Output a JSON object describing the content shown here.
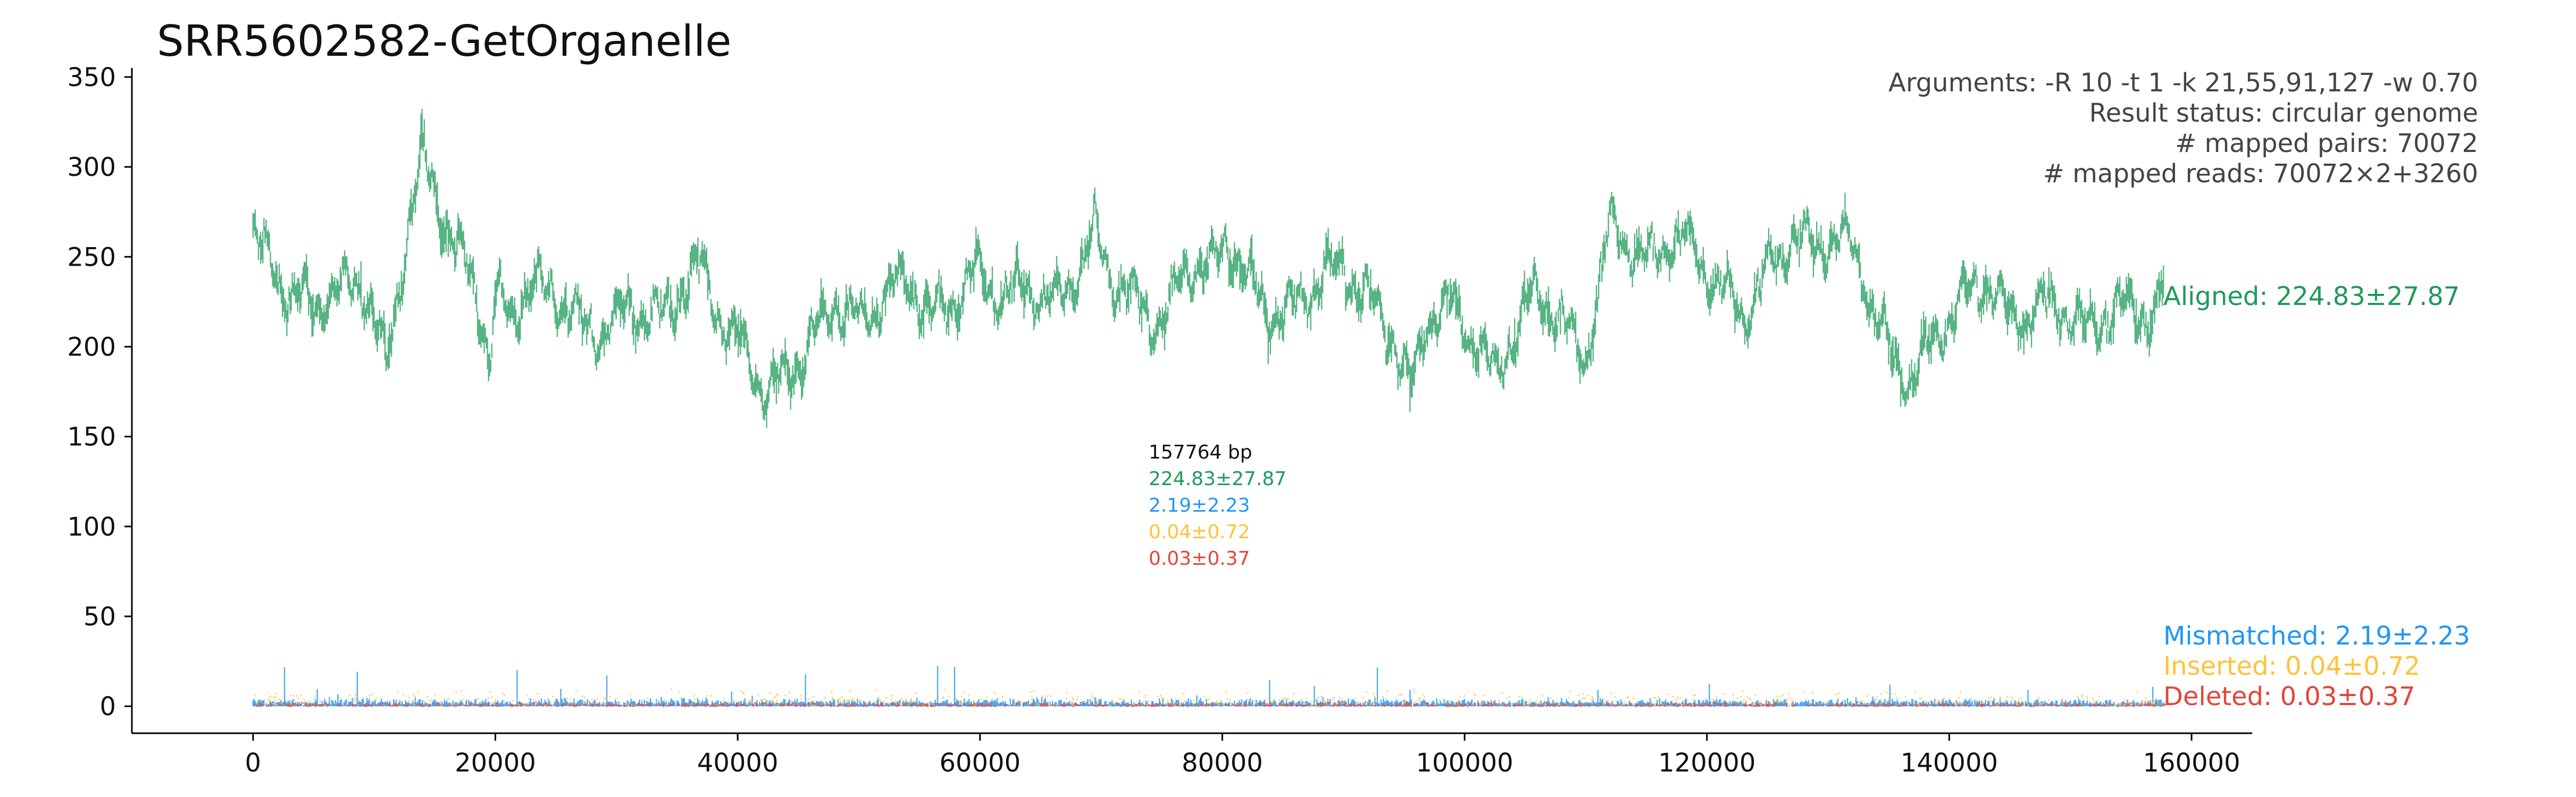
{
  "chart_data": {
    "type": "scatter",
    "title": "SRR5602582-GetOrganelle",
    "xlabel": "",
    "ylabel": "",
    "xlim": [
      -10000,
      165000
    ],
    "ylim": [
      -15,
      355
    ],
    "x_ticks": [
      0,
      20000,
      40000,
      60000,
      80000,
      100000,
      120000,
      140000,
      160000
    ],
    "y_ticks": [
      0,
      50,
      100,
      150,
      200,
      250,
      300,
      350
    ],
    "grid": false,
    "genome_length_bp": 157764,
    "info_lines": [
      "Arguments: -R 10 -t 1 -k 21,55,91,127 -w 0.70",
      "Result status: circular genome",
      "# mapped pairs: 70072",
      "# mapped reads: 70072×2+3260"
    ],
    "center_annotation": {
      "length": "157764 bp",
      "aligned": "224.83±27.87",
      "mismatched": "2.19±2.23",
      "inserted": "0.04±0.72",
      "deleted": "0.03±0.37"
    },
    "series": [
      {
        "name": "Aligned",
        "label": "Aligned: 224.83±27.87",
        "color": "#1f9a5a",
        "mean": 224.83,
        "sd": 27.87,
        "x": [
          0,
          1500,
          3000,
          5000,
          7000,
          9000,
          10000,
          11000,
          12000,
          13000,
          14000,
          15000,
          16000,
          17000,
          18000,
          19000,
          19500,
          20000,
          21000,
          23000,
          25000,
          27000,
          29000,
          31000,
          33000,
          35000,
          37000,
          39000,
          41000,
          42500,
          44000,
          46000,
          48000,
          50000,
          52000,
          54000,
          56000,
          58000,
          60000,
          62000,
          64000,
          66000,
          68000,
          69500,
          71000,
          73000,
          75000,
          77000,
          79000,
          80500,
          82000,
          84000,
          86000,
          88000,
          90000,
          92000,
          94000,
          95500,
          97000,
          99000,
          101000,
          102500,
          104000,
          106000,
          108000,
          110000,
          112000,
          113000,
          115000,
          117000,
          119000,
          121000,
          123000,
          125000,
          127000,
          129000,
          131000,
          132500,
          134000,
          135500,
          137000,
          139000,
          141000,
          143000,
          145000,
          147000,
          149000,
          151000,
          153000,
          155000,
          157000,
          157764
        ],
        "y": [
          260,
          245,
          228,
          225,
          232,
          238,
          215,
          190,
          232,
          275,
          305,
          290,
          265,
          250,
          240,
          215,
          185,
          228,
          220,
          232,
          230,
          212,
          208,
          222,
          215,
          228,
          245,
          210,
          195,
          172,
          185,
          200,
          225,
          212,
          228,
          238,
          215,
          228,
          242,
          225,
          235,
          222,
          242,
          262,
          238,
          222,
          212,
          245,
          242,
          260,
          238,
          218,
          222,
          238,
          245,
          225,
          208,
          172,
          218,
          222,
          202,
          182,
          210,
          232,
          212,
          192,
          268,
          262,
          245,
          260,
          255,
          232,
          220,
          240,
          262,
          255,
          262,
          248,
          215,
          192,
          182,
          208,
          225,
          238,
          215,
          220,
          225,
          208,
          218,
          222,
          215,
          240
        ]
      },
      {
        "name": "Mismatched",
        "label": "Mismatched: 2.19±2.23",
        "color": "#2196f3",
        "mean": 2.19,
        "sd": 2.23
      },
      {
        "name": "Inserted",
        "label": "Inserted: 0.04±0.72",
        "color": "#ffc23b",
        "mean": 0.04,
        "sd": 0.72
      },
      {
        "name": "Deleted",
        "label": "Deleted: 0.03±0.37",
        "color": "#e0463a",
        "mean": 0.03,
        "sd": 0.37
      }
    ]
  }
}
